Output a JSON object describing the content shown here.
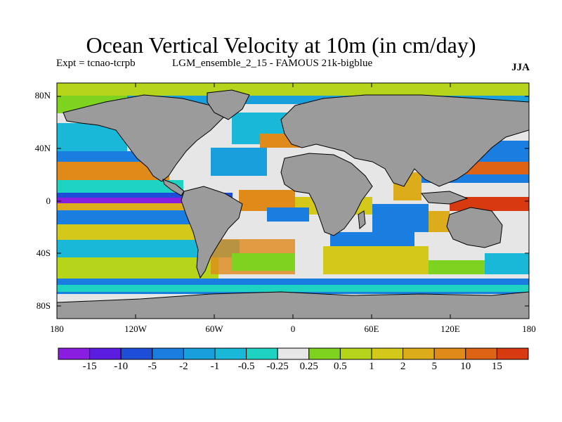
{
  "title": "Ocean Vertical Velocity at 10m (in cm/day)",
  "experiment": "Expt = tcnao-tcrpb",
  "run_name": "LGM_ensemble_2_15 - FAMOUS 21k-bigblue",
  "season": "JJA",
  "lat_ticks": [
    "80N",
    "40N",
    "0",
    "40S",
    "80S"
  ],
  "lon_ticks": [
    "180",
    "120W",
    "60W",
    "0",
    "60E",
    "120E",
    "180"
  ],
  "colorbar": {
    "colors": [
      "#8a1ee0",
      "#5a1de0",
      "#1e4ed8",
      "#1a7ee0",
      "#199fdb",
      "#1ab8d8",
      "#1fd3c2",
      "#e6e6e6",
      "#7ed321",
      "#b5d41a",
      "#d4c81a",
      "#dcac1a",
      "#e08a1a",
      "#dd6414",
      "#d83a0f"
    ],
    "labels": [
      "-15",
      "-10",
      "-5",
      "-2",
      "-1",
      "-0.5",
      "-0.25",
      "0.25",
      "0.5",
      "1",
      "2",
      "5",
      "10",
      "15"
    ]
  },
  "colors": {
    "land": "#9b9b9b",
    "frame": "#000000"
  }
}
